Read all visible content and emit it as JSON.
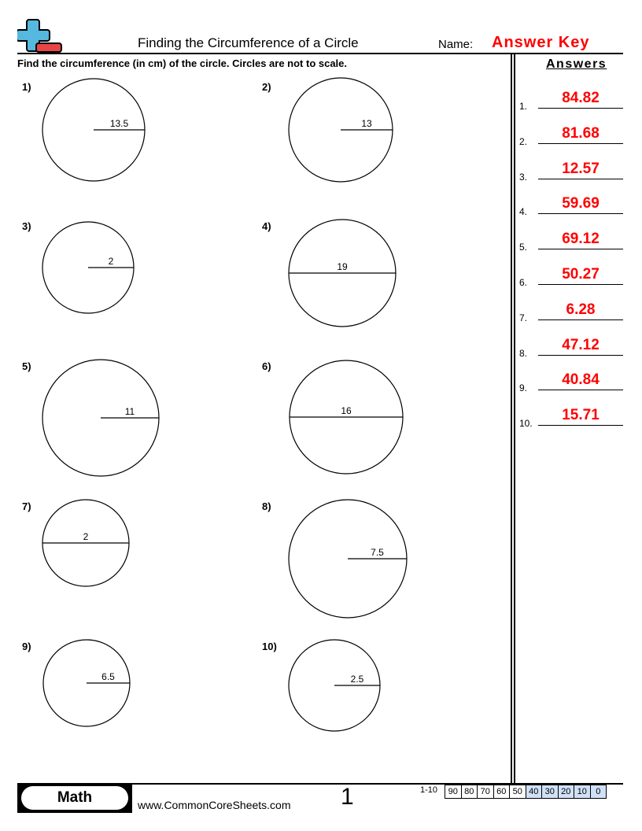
{
  "header": {
    "title": "Finding the Circumference of a Circle",
    "name_label": "Name:",
    "name_value": "Answer Key",
    "logo_icon": "plus-minus-logo-icon",
    "colors": {
      "logo_blue": "#56b7df",
      "logo_red": "#e84545",
      "answer_red": "#ff0000"
    }
  },
  "instructions": "Find the circumference (in cm) of the circle. Circles are not to scale.",
  "problems": [
    {
      "label": "1)",
      "value": "13.5",
      "measure": "radius"
    },
    {
      "label": "2)",
      "value": "13",
      "measure": "radius"
    },
    {
      "label": "3)",
      "value": "2",
      "measure": "radius"
    },
    {
      "label": "4)",
      "value": "19",
      "measure": "diameter"
    },
    {
      "label": "5)",
      "value": "11",
      "measure": "radius"
    },
    {
      "label": "6)",
      "value": "16",
      "measure": "diameter"
    },
    {
      "label": "7)",
      "value": "2",
      "measure": "diameter"
    },
    {
      "label": "8)",
      "value": "7.5",
      "measure": "radius"
    },
    {
      "label": "9)",
      "value": "6.5",
      "measure": "radius"
    },
    {
      "label": "10)",
      "value": "2.5",
      "measure": "radius"
    }
  ],
  "answers": {
    "title": "Answers",
    "items": [
      {
        "num": "1.",
        "value": "84.82"
      },
      {
        "num": "2.",
        "value": "81.68"
      },
      {
        "num": "3.",
        "value": "12.57"
      },
      {
        "num": "4.",
        "value": "59.69"
      },
      {
        "num": "5.",
        "value": "69.12"
      },
      {
        "num": "6.",
        "value": "50.27"
      },
      {
        "num": "7.",
        "value": "6.28"
      },
      {
        "num": "8.",
        "value": "47.12"
      },
      {
        "num": "9.",
        "value": "40.84"
      },
      {
        "num": "10.",
        "value": "15.71"
      }
    ]
  },
  "footer": {
    "subject": "Math",
    "website": "www.CommonCoreSheets.com",
    "page": "1",
    "range": "1-10",
    "scores": [
      "90",
      "80",
      "70",
      "60",
      "50",
      "40",
      "30",
      "20",
      "10",
      "0"
    ]
  }
}
